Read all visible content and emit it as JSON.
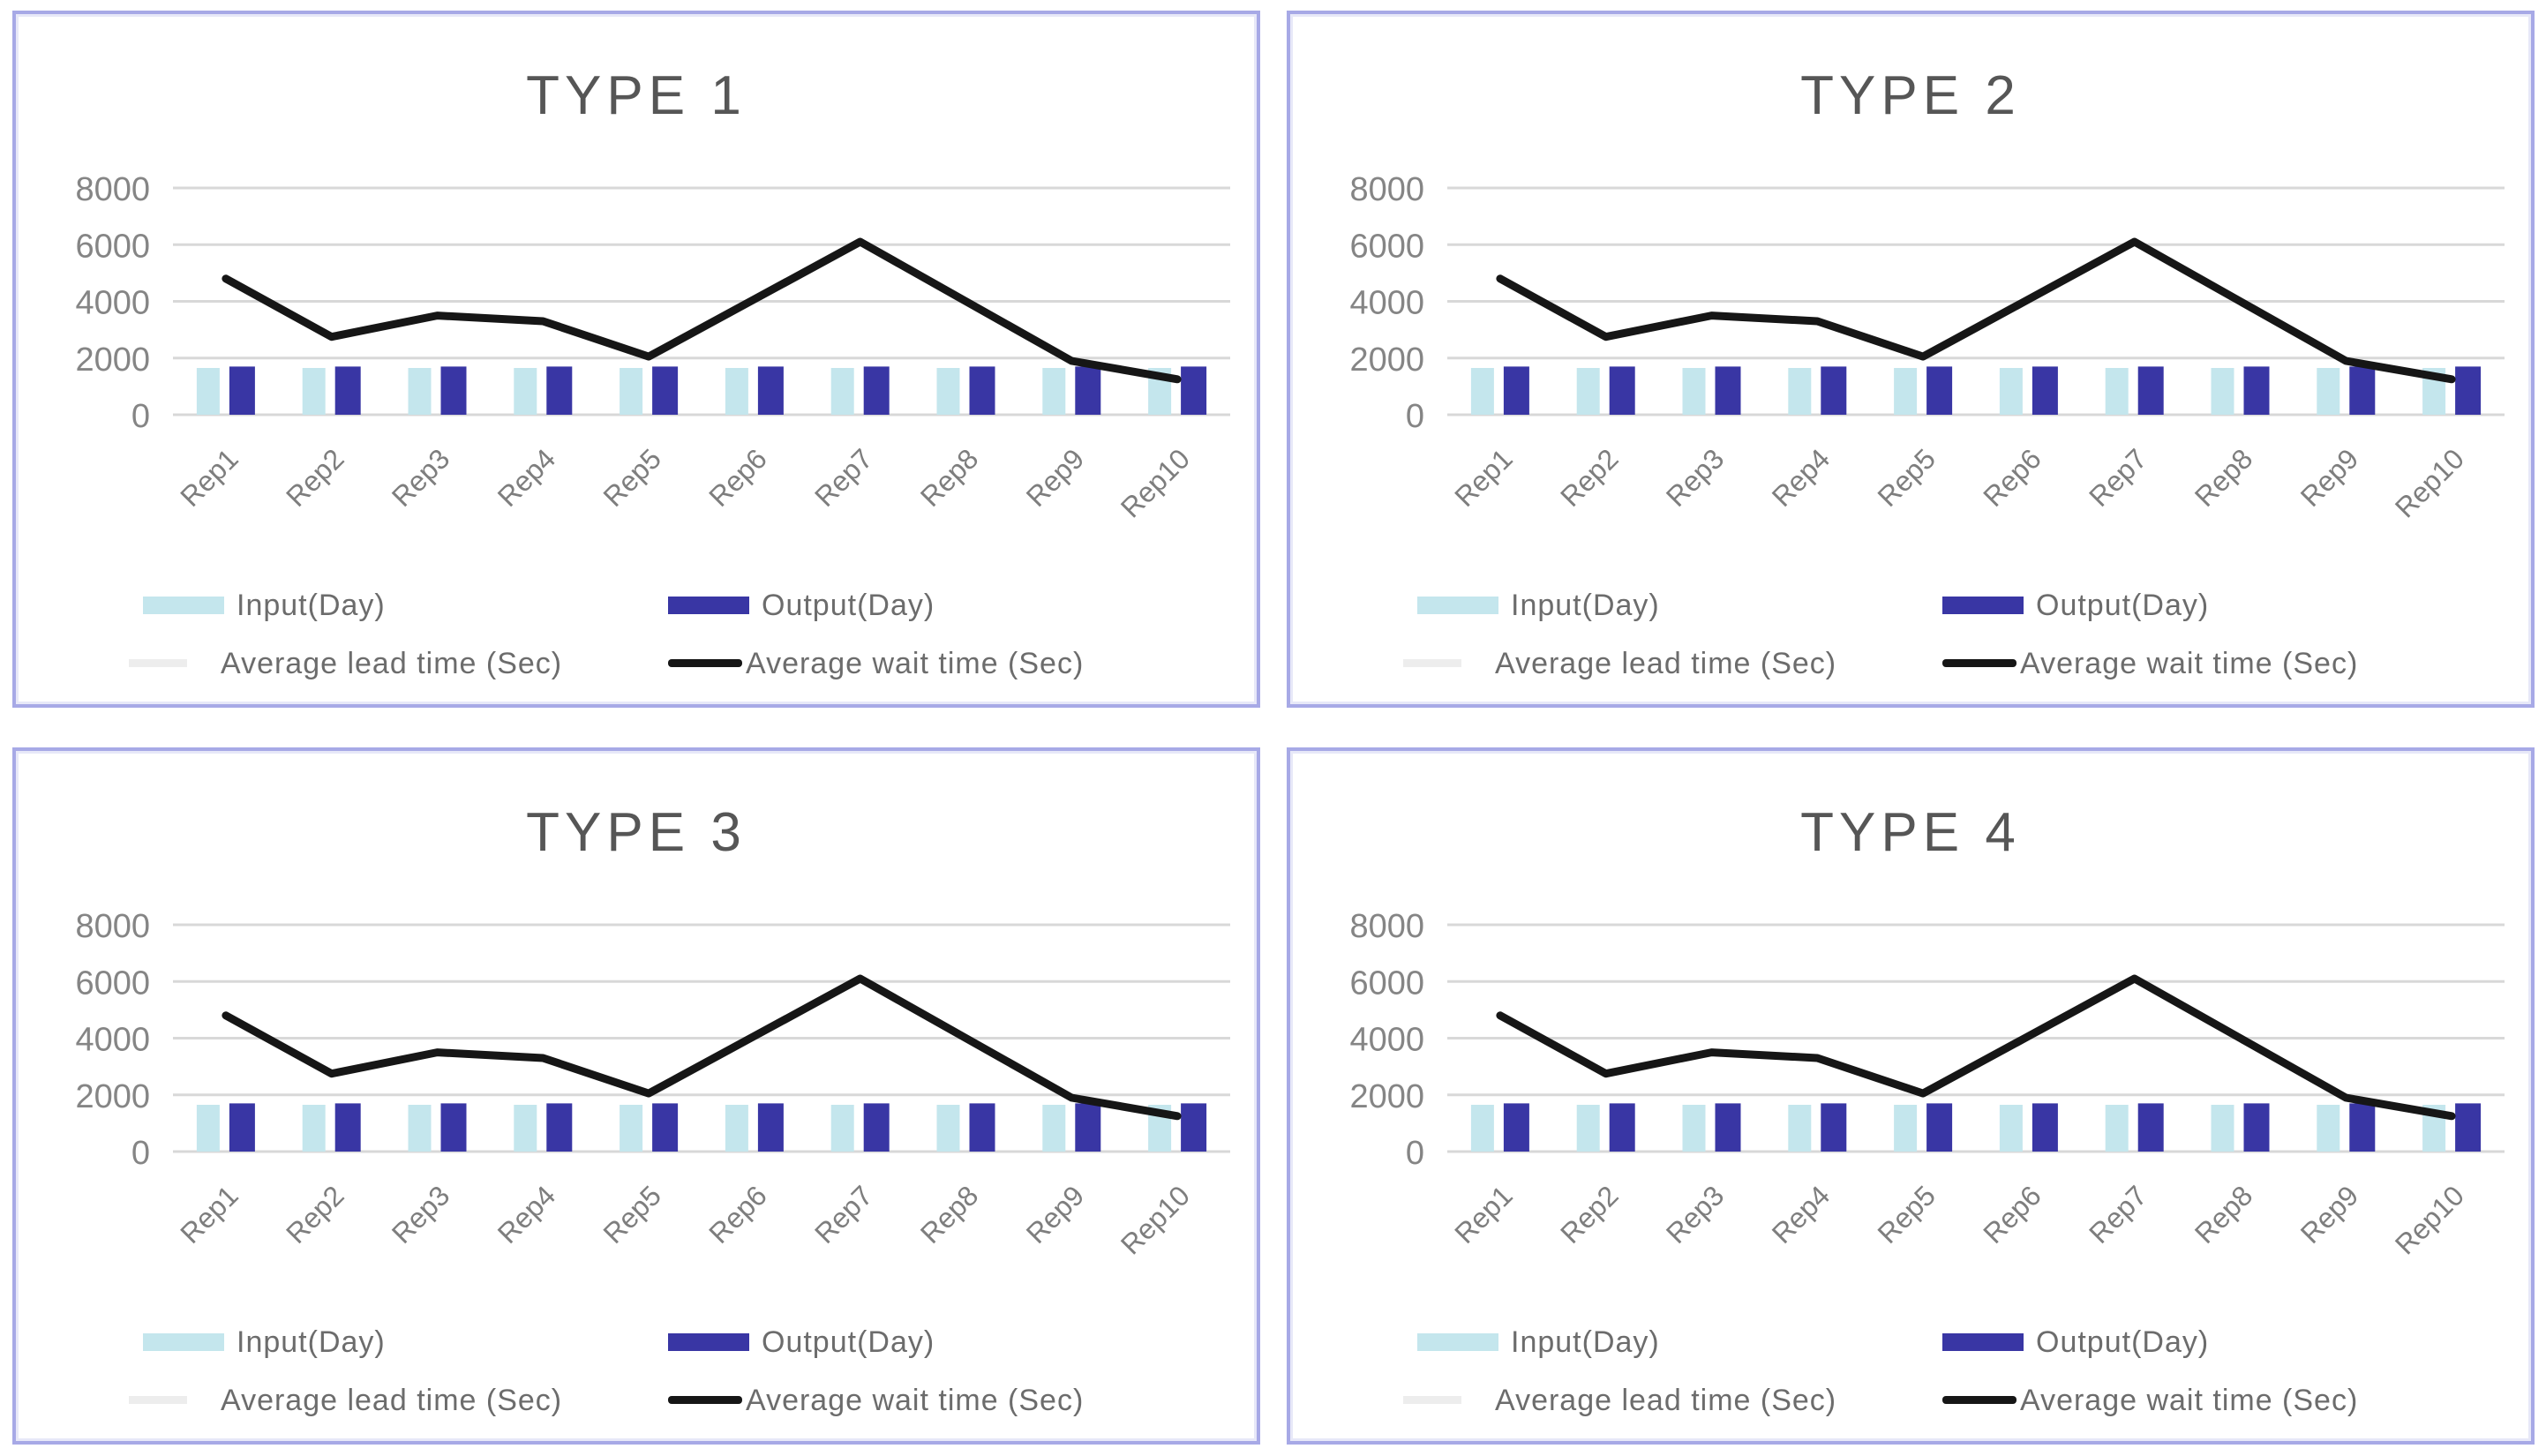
{
  "page": {
    "background": "#ffffff",
    "card_border_color": "#a7a9e6",
    "gridline_color": "#d8d8d8",
    "axis_label_color": "#858585",
    "title_color": "#565656",
    "legend_text_color": "#6c6c6c"
  },
  "chart_data": [
    {
      "type": "combo-bar-line",
      "title": "TYPE 1",
      "categories": [
        "Rep1",
        "Rep2",
        "Rep3",
        "Rep4",
        "Rep5",
        "Rep6",
        "Rep7",
        "Rep8",
        "Rep9",
        "Rep10"
      ],
      "yticks": [
        0,
        2000,
        4000,
        6000,
        8000
      ],
      "ylim": [
        0,
        8000
      ],
      "grid": true,
      "legend_position": "bottom",
      "series": [
        {
          "name": "Input(Day)",
          "type": "bar",
          "color": "#c4e6ed",
          "values": [
            1650,
            1650,
            1650,
            1650,
            1650,
            1650,
            1650,
            1650,
            1650,
            1650
          ]
        },
        {
          "name": "Output(Day)",
          "type": "bar",
          "color": "#3936a4",
          "values": [
            1700,
            1700,
            1700,
            1700,
            1700,
            1700,
            1700,
            1700,
            1700,
            1700
          ]
        },
        {
          "name": "Average lead time (Sec)",
          "type": "line",
          "color": "#ededed",
          "visible": false,
          "values": []
        },
        {
          "name": "Average wait time (Sec)",
          "type": "line",
          "color": "#161616",
          "values": [
            4800,
            2750,
            3500,
            3300,
            2050,
            4075,
            6100,
            4000,
            1900,
            1250
          ]
        }
      ]
    },
    {
      "type": "combo-bar-line",
      "title": "TYPE 2",
      "categories": [
        "Rep1",
        "Rep2",
        "Rep3",
        "Rep4",
        "Rep5",
        "Rep6",
        "Rep7",
        "Rep8",
        "Rep9",
        "Rep10"
      ],
      "yticks": [
        0,
        2000,
        4000,
        6000,
        8000
      ],
      "ylim": [
        0,
        8000
      ],
      "grid": true,
      "legend_position": "bottom",
      "series": [
        {
          "name": "Input(Day)",
          "type": "bar",
          "color": "#c4e6ed",
          "values": [
            1650,
            1650,
            1650,
            1650,
            1650,
            1650,
            1650,
            1650,
            1650,
            1650
          ]
        },
        {
          "name": "Output(Day)",
          "type": "bar",
          "color": "#3936a4",
          "values": [
            1700,
            1700,
            1700,
            1700,
            1700,
            1700,
            1700,
            1700,
            1700,
            1700
          ]
        },
        {
          "name": "Average lead time (Sec)",
          "type": "line",
          "color": "#ededed",
          "visible": false,
          "values": []
        },
        {
          "name": "Average wait time (Sec)",
          "type": "line",
          "color": "#161616",
          "values": [
            4800,
            2750,
            3500,
            3300,
            2050,
            4075,
            6100,
            4000,
            1900,
            1250
          ]
        }
      ]
    },
    {
      "type": "combo-bar-line",
      "title": "TYPE 3",
      "categories": [
        "Rep1",
        "Rep2",
        "Rep3",
        "Rep4",
        "Rep5",
        "Rep6",
        "Rep7",
        "Rep8",
        "Rep9",
        "Rep10"
      ],
      "yticks": [
        0,
        2000,
        4000,
        6000,
        8000
      ],
      "ylim": [
        0,
        8000
      ],
      "grid": true,
      "legend_position": "bottom",
      "series": [
        {
          "name": "Input(Day)",
          "type": "bar",
          "color": "#c4e6ed",
          "values": [
            1650,
            1650,
            1650,
            1650,
            1650,
            1650,
            1650,
            1650,
            1650,
            1650
          ]
        },
        {
          "name": "Output(Day)",
          "type": "bar",
          "color": "#3936a4",
          "values": [
            1700,
            1700,
            1700,
            1700,
            1700,
            1700,
            1700,
            1700,
            1700,
            1700
          ]
        },
        {
          "name": "Average lead time (Sec)",
          "type": "line",
          "color": "#ededed",
          "visible": false,
          "values": []
        },
        {
          "name": "Average wait time (Sec)",
          "type": "line",
          "color": "#161616",
          "values": [
            4800,
            2750,
            3500,
            3300,
            2050,
            4075,
            6100,
            4000,
            1900,
            1250
          ]
        }
      ]
    },
    {
      "type": "combo-bar-line",
      "title": "TYPE 4",
      "categories": [
        "Rep1",
        "Rep2",
        "Rep3",
        "Rep4",
        "Rep5",
        "Rep6",
        "Rep7",
        "Rep8",
        "Rep9",
        "Rep10"
      ],
      "yticks": [
        0,
        2000,
        4000,
        6000,
        8000
      ],
      "ylim": [
        0,
        8000
      ],
      "grid": true,
      "legend_position": "bottom",
      "series": [
        {
          "name": "Input(Day)",
          "type": "bar",
          "color": "#c4e6ed",
          "values": [
            1650,
            1650,
            1650,
            1650,
            1650,
            1650,
            1650,
            1650,
            1650,
            1650
          ]
        },
        {
          "name": "Output(Day)",
          "type": "bar",
          "color": "#3936a4",
          "values": [
            1700,
            1700,
            1700,
            1700,
            1700,
            1700,
            1700,
            1700,
            1700,
            1700
          ]
        },
        {
          "name": "Average lead time (Sec)",
          "type": "line",
          "color": "#ededed",
          "visible": false,
          "values": []
        },
        {
          "name": "Average wait time (Sec)",
          "type": "line",
          "color": "#161616",
          "values": [
            4800,
            2750,
            3500,
            3300,
            2050,
            4075,
            6100,
            4000,
            1900,
            1250
          ]
        }
      ]
    }
  ]
}
